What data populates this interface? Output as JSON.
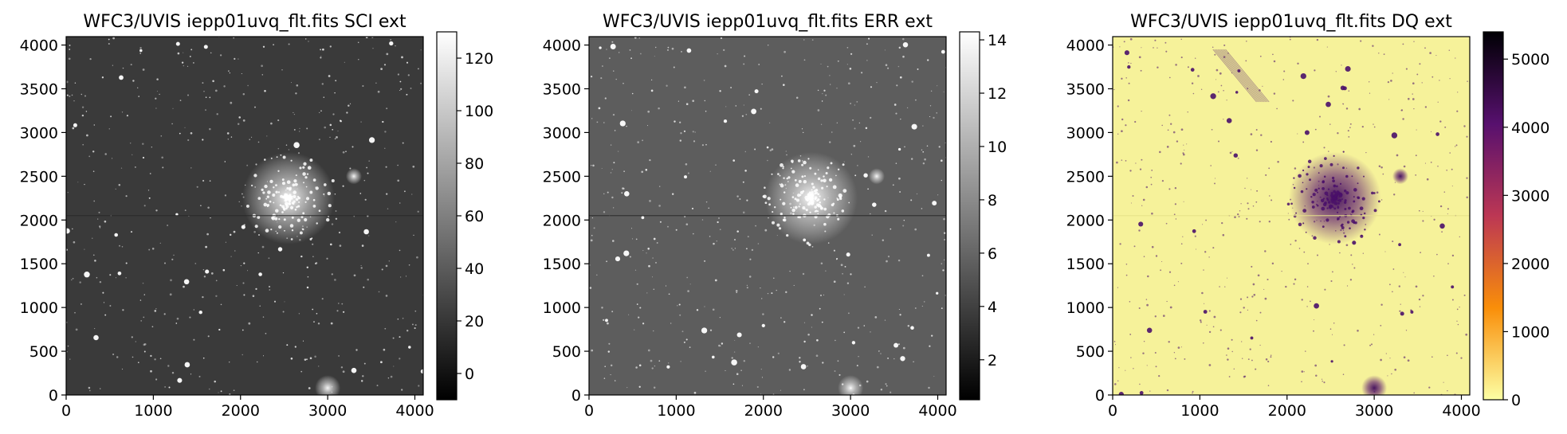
{
  "chart_data": [
    {
      "type": "heatmap",
      "title": "WFC3/UVIS iepp01uvq_flt.fits SCI ext",
      "colormap": "gray",
      "xlim": [
        0,
        4096
      ],
      "ylim": [
        0,
        4096
      ],
      "xticks": [
        0,
        1000,
        2000,
        3000,
        4000
      ],
      "yticks": [
        0,
        500,
        1000,
        1500,
        2000,
        2500,
        3000,
        3500,
        4000
      ],
      "colorbar": {
        "range": [
          -10,
          130
        ],
        "ticks": [
          0,
          20,
          40,
          60,
          80,
          100,
          120
        ]
      }
    },
    {
      "type": "heatmap",
      "title": "WFC3/UVIS iepp01uvq_flt.fits ERR ext",
      "colormap": "gray",
      "xlim": [
        0,
        4096
      ],
      "ylim": [
        0,
        4096
      ],
      "xticks": [
        0,
        1000,
        2000,
        3000,
        4000
      ],
      "yticks": [
        0,
        500,
        1000,
        1500,
        2000,
        2500,
        3000,
        3500,
        4000
      ],
      "colorbar": {
        "range": [
          0.5,
          14.3
        ],
        "ticks": [
          2,
          4,
          6,
          8,
          10,
          12,
          14
        ]
      }
    },
    {
      "type": "heatmap",
      "title": "WFC3/UVIS iepp01uvq_flt.fits DQ ext",
      "colormap": "inferno_r",
      "xlim": [
        0,
        4096
      ],
      "ylim": [
        0,
        4096
      ],
      "xticks": [
        0,
        1000,
        2000,
        3000,
        4000
      ],
      "yticks": [
        0,
        500,
        1000,
        1500,
        2000,
        2500,
        3000,
        3500,
        4000
      ],
      "colorbar": {
        "range": [
          0,
          5400
        ],
        "ticks": [
          0,
          1000,
          2000,
          3000,
          4000,
          5000
        ]
      }
    }
  ],
  "colors": {
    "gray_low": "#000000",
    "gray_high": "#ffffff",
    "inferno_stops": [
      "#fcffa4",
      "#f98e09",
      "#bc3754",
      "#57106e",
      "#000004"
    ],
    "sci_background": "#3a3a3a",
    "err_background": "#5d5d5d",
    "dq_background": "#f6f29a",
    "dq_mark": "#4a0f6a"
  }
}
